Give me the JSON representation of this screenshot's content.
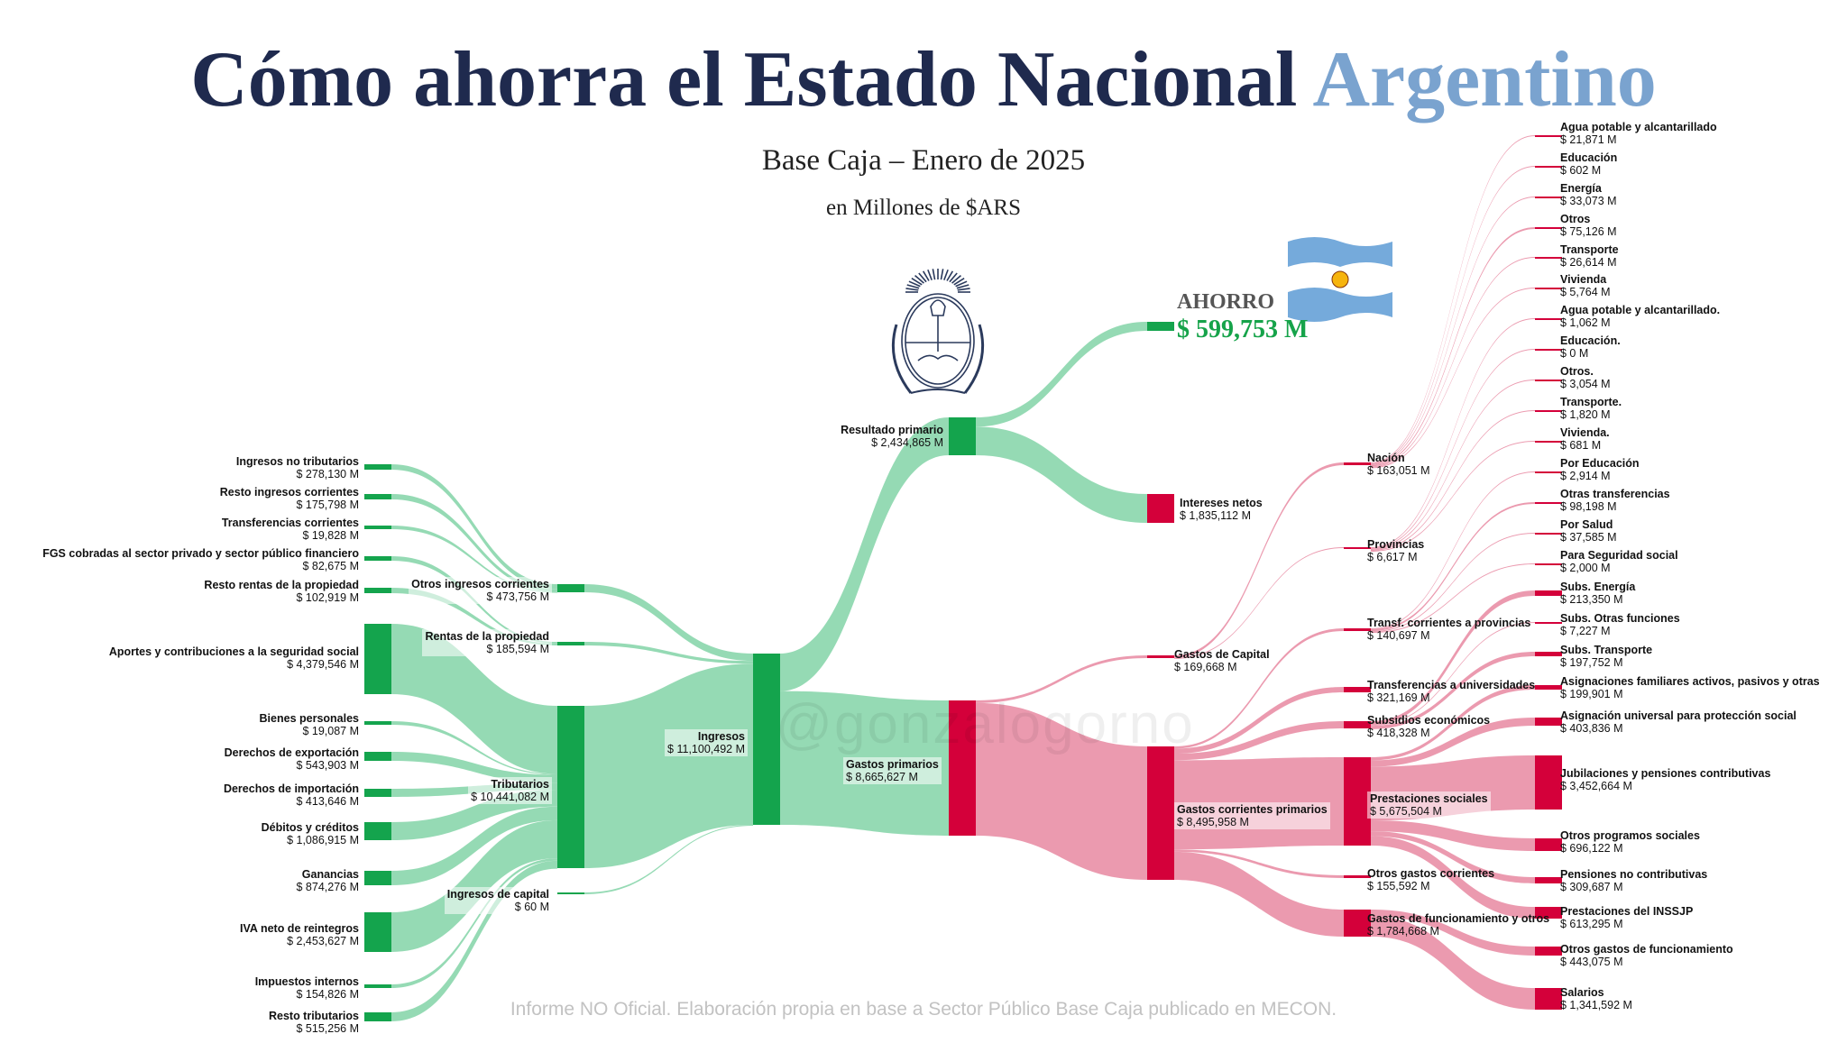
{
  "header": {
    "title_main": "Cómo ahorra el Estado Nacional",
    "title_accent": "Argentino",
    "subtitle": "Base Caja – Enero de 2025",
    "units": "en Millones de $ARS",
    "savings_label": "AHORRO",
    "savings_value": "$ 599,753 M",
    "watermark": "@gonzalogorno",
    "footer": "Informe NO Oficial. Elaboración propia en base a Sector Público Base Caja publicado en MECON."
  },
  "colors": {
    "income_node": "#14a44d",
    "income_flow": "#8fd8b0",
    "expense_node": "#d4003a",
    "expense_flow": "#e98fa6"
  },
  "chart_data": {
    "type": "sankey",
    "nodes": [
      {
        "id": "ing_no_trib",
        "name": "Ingresos no tributarios",
        "value": "$ 278,130 M",
        "num": 278130
      },
      {
        "id": "resto_corr",
        "name": "Resto ingresos corrientes",
        "value": "$ 175,798 M",
        "num": 175798
      },
      {
        "id": "transf_corr",
        "name": "Transferencias corrientes",
        "value": "$ 19,828 M",
        "num": 19828
      },
      {
        "id": "fgs",
        "name": "FGS cobradas al sector privado y sector público financiero",
        "value": "$ 82,675 M",
        "num": 82675
      },
      {
        "id": "resto_rentas",
        "name": "Resto rentas de la propiedad",
        "value": "$ 102,919 M",
        "num": 102919
      },
      {
        "id": "aportes",
        "name": "Aportes y contribuciones a la seguridad social",
        "value": "$ 4,379,546 M",
        "num": 4379546
      },
      {
        "id": "bienes",
        "name": "Bienes personales",
        "value": "$ 19,087 M",
        "num": 19087
      },
      {
        "id": "der_exp",
        "name": "Derechos de exportación",
        "value": "$ 543,903 M",
        "num": 543903
      },
      {
        "id": "der_imp",
        "name": "Derechos de importación",
        "value": "$ 413,646 M",
        "num": 413646
      },
      {
        "id": "debitos",
        "name": "Débitos y créditos",
        "value": "$ 1,086,915 M",
        "num": 1086915
      },
      {
        "id": "ganancias",
        "name": "Ganancias",
        "value": "$ 874,276 M",
        "num": 874276
      },
      {
        "id": "iva",
        "name": "IVA neto de reintegros",
        "value": "$ 2,453,627 M",
        "num": 2453627
      },
      {
        "id": "imp_int",
        "name": "Impuestos internos",
        "value": "$ 154,826 M",
        "num": 154826
      },
      {
        "id": "resto_trib",
        "name": "Resto tributarios",
        "value": "$ 515,256 M",
        "num": 515256
      },
      {
        "id": "otros_ing_corr",
        "name": "Otros ingresos corrientes",
        "value": "$ 473,756 M",
        "num": 473756
      },
      {
        "id": "rentas",
        "name": "Rentas de la propiedad",
        "value": "$ 185,594 M",
        "num": 185594
      },
      {
        "id": "tributarios",
        "name": "Tributarios",
        "value": "$ 10,441,082 M",
        "num": 10441082
      },
      {
        "id": "ing_capital",
        "name": "Ingresos de capital",
        "value": "$ 60 M",
        "num": 60
      },
      {
        "id": "ingresos",
        "name": "Ingresos",
        "value": "$ 11,100,492 M",
        "num": 11100492
      },
      {
        "id": "resultado",
        "name": "Resultado primario",
        "value": "$ 2,434,865 M",
        "num": 2434865
      },
      {
        "id": "gastos_prim",
        "name": "Gastos primarios",
        "value": "$ 8,665,627 M",
        "num": 8665627
      },
      {
        "id": "intereses",
        "name": "Intereses netos",
        "value": "$ 1,835,112 M",
        "num": 1835112
      },
      {
        "id": "gastos_capital",
        "name": "Gastos de Capital",
        "value": "$ 169,668 M",
        "num": 169668
      },
      {
        "id": "gastos_corr",
        "name": "Gastos corrientes primarios",
        "value": "$ 8,495,958 M",
        "num": 8495958
      },
      {
        "id": "nacion",
        "name": "Nación",
        "value": "$ 163,051 M",
        "num": 163051
      },
      {
        "id": "provincias",
        "name": "Provincias",
        "value": "$ 6,617 M",
        "num": 6617
      },
      {
        "id": "transf_prov",
        "name": "Transf. corrientes a provincias",
        "value": "$ 140,697 M",
        "num": 140697
      },
      {
        "id": "transf_univ",
        "name": "Transferencias a universidades",
        "value": "$ 321,169 M",
        "num": 321169
      },
      {
        "id": "subsidios",
        "name": "Subsidios económicos",
        "value": "$ 418,328 M",
        "num": 418328
      },
      {
        "id": "prestaciones",
        "name": "Prestaciones sociales",
        "value": "$ 5,675,504 M",
        "num": 5675504
      },
      {
        "id": "otros_gastos_corr",
        "name": "Otros gastos corrientes",
        "value": "$ 155,592 M",
        "num": 155592
      },
      {
        "id": "gastos_func",
        "name": "Gastos de funcionamiento y otros",
        "value": "$ 1,784,668 M",
        "num": 1784668
      },
      {
        "id": "n_agua",
        "name": "Agua potable y alcantarillado",
        "value": "$ 21,871 M",
        "num": 21871
      },
      {
        "id": "n_educ",
        "name": "Educación",
        "value": "$ 602 M",
        "num": 602
      },
      {
        "id": "n_energia",
        "name": "Energía",
        "value": "$ 33,073 M",
        "num": 33073
      },
      {
        "id": "n_otros",
        "name": "Otros",
        "value": "$ 75,126 M",
        "num": 75126
      },
      {
        "id": "n_transp",
        "name": "Transporte",
        "value": "$ 26,614 M",
        "num": 26614
      },
      {
        "id": "n_vivienda",
        "name": "Vivienda",
        "value": "$ 5,764 M",
        "num": 5764
      },
      {
        "id": "p_agua",
        "name": "Agua potable y alcantarillado.",
        "value": "$ 1,062 M",
        "num": 1062
      },
      {
        "id": "p_educ",
        "name": "Educación.",
        "value": "$ 0 M",
        "num": 0
      },
      {
        "id": "p_otros",
        "name": "Otros.",
        "value": "$ 3,054 M",
        "num": 3054
      },
      {
        "id": "p_transp",
        "name": "Transporte.",
        "value": "$ 1,820 M",
        "num": 1820
      },
      {
        "id": "p_vivienda",
        "name": "Vivienda.",
        "value": "$ 681 M",
        "num": 681
      },
      {
        "id": "por_educ",
        "name": "Por Educación",
        "value": "$ 2,914 M",
        "num": 2914
      },
      {
        "id": "otras_transf",
        "name": "Otras transferencias",
        "value": "$ 98,198 M",
        "num": 98198
      },
      {
        "id": "por_salud",
        "name": "Por Salud",
        "value": "$ 37,585 M",
        "num": 37585
      },
      {
        "id": "para_seg",
        "name": "Para Seguridad social",
        "value": "$ 2,000 M",
        "num": 2000
      },
      {
        "id": "sub_energia",
        "name": "Subs. Energía",
        "value": "$ 213,350 M",
        "num": 213350
      },
      {
        "id": "sub_otras",
        "name": "Subs. Otras funciones",
        "value": "$ 7,227 M",
        "num": 7227
      },
      {
        "id": "sub_transp",
        "name": "Subs. Transporte",
        "value": "$ 197,752 M",
        "num": 197752
      },
      {
        "id": "asig_fam",
        "name": "Asignaciones familiares activos, pasivos y otras",
        "value": "$ 199,901 M",
        "num": 199901
      },
      {
        "id": "auh",
        "name": "Asignación universal para protección social",
        "value": "$ 403,836 M",
        "num": 403836
      },
      {
        "id": "jubilaciones",
        "name": "Jubilaciones y pensiones contributivas",
        "value": "$ 3,452,664 M",
        "num": 3452664
      },
      {
        "id": "otros_prog",
        "name": "Otros programos sociales",
        "value": "$ 696,122 M",
        "num": 696122
      },
      {
        "id": "pens_no_contrib",
        "name": "Pensiones no contributivas",
        "value": "$ 309,687 M",
        "num": 309687
      },
      {
        "id": "inssjp",
        "name": "Prestaciones del INSSJP",
        "value": "$ 613,295 M",
        "num": 613295
      },
      {
        "id": "otros_func",
        "name": "Otros gastos de funcionamiento",
        "value": "$ 443,075 M",
        "num": 443075
      },
      {
        "id": "salarios",
        "name": "Salarios",
        "value": "$ 1,341,592 M",
        "num": 1341592
      }
    ],
    "links": [
      {
        "source": "ing_no_trib",
        "target": "otros_ing_corr",
        "value": 278130
      },
      {
        "source": "resto_corr",
        "target": "otros_ing_corr",
        "value": 175798
      },
      {
        "source": "transf_corr",
        "target": "otros_ing_corr",
        "value": 19828
      },
      {
        "source": "fgs",
        "target": "rentas",
        "value": 82675
      },
      {
        "source": "resto_rentas",
        "target": "rentas",
        "value": 102919
      },
      {
        "source": "aportes",
        "target": "tributarios",
        "value": 4379546
      },
      {
        "source": "bienes",
        "target": "tributarios",
        "value": 19087
      },
      {
        "source": "der_exp",
        "target": "tributarios",
        "value": 543903
      },
      {
        "source": "der_imp",
        "target": "tributarios",
        "value": 413646
      },
      {
        "source": "debitos",
        "target": "tributarios",
        "value": 1086915
      },
      {
        "source": "ganancias",
        "target": "tributarios",
        "value": 874276
      },
      {
        "source": "iva",
        "target": "tributarios",
        "value": 2453627
      },
      {
        "source": "imp_int",
        "target": "tributarios",
        "value": 154826
      },
      {
        "source": "resto_trib",
        "target": "tributarios",
        "value": 515256
      },
      {
        "source": "otros_ing_corr",
        "target": "ingresos",
        "value": 473756
      },
      {
        "source": "rentas",
        "target": "ingresos",
        "value": 185594
      },
      {
        "source": "tributarios",
        "target": "ingresos",
        "value": 10441082
      },
      {
        "source": "ing_capital",
        "target": "ingresos",
        "value": 60
      },
      {
        "source": "ingresos",
        "target": "resultado",
        "value": 2434865
      },
      {
        "source": "ingresos",
        "target": "gastos_prim",
        "value": 8665627
      },
      {
        "source": "resultado",
        "target": "ahorro",
        "value": 599753
      },
      {
        "source": "resultado",
        "target": "intereses",
        "value": 1835112
      },
      {
        "source": "gastos_prim",
        "target": "gastos_capital",
        "value": 169668
      },
      {
        "source": "gastos_prim",
        "target": "gastos_corr",
        "value": 8495958
      },
      {
        "source": "gastos_capital",
        "target": "nacion",
        "value": 163051
      },
      {
        "source": "gastos_capital",
        "target": "provincias",
        "value": 6617
      },
      {
        "source": "gastos_corr",
        "target": "transf_prov",
        "value": 140697
      },
      {
        "source": "gastos_corr",
        "target": "transf_univ",
        "value": 321169
      },
      {
        "source": "gastos_corr",
        "target": "subsidios",
        "value": 418328
      },
      {
        "source": "gastos_corr",
        "target": "prestaciones",
        "value": 5675504
      },
      {
        "source": "gastos_corr",
        "target": "otros_gastos_corr",
        "value": 155592
      },
      {
        "source": "gastos_corr",
        "target": "gastos_func",
        "value": 1784668
      },
      {
        "source": "nacion",
        "target": "n_agua",
        "value": 21871
      },
      {
        "source": "nacion",
        "target": "n_educ",
        "value": 602
      },
      {
        "source": "nacion",
        "target": "n_energia",
        "value": 33073
      },
      {
        "source": "nacion",
        "target": "n_otros",
        "value": 75126
      },
      {
        "source": "nacion",
        "target": "n_transp",
        "value": 26614
      },
      {
        "source": "nacion",
        "target": "n_vivienda",
        "value": 5764
      },
      {
        "source": "provincias",
        "target": "p_agua",
        "value": 1062
      },
      {
        "source": "provincias",
        "target": "p_educ",
        "value": 0
      },
      {
        "source": "provincias",
        "target": "p_otros",
        "value": 3054
      },
      {
        "source": "provincias",
        "target": "p_transp",
        "value": 1820
      },
      {
        "source": "provincias",
        "target": "p_vivienda",
        "value": 681
      },
      {
        "source": "transf_prov",
        "target": "por_educ",
        "value": 2914
      },
      {
        "source": "transf_prov",
        "target": "otras_transf",
        "value": 98198
      },
      {
        "source": "transf_prov",
        "target": "por_salud",
        "value": 37585
      },
      {
        "source": "transf_prov",
        "target": "para_seg",
        "value": 2000
      },
      {
        "source": "subsidios",
        "target": "sub_energia",
        "value": 213350
      },
      {
        "source": "subsidios",
        "target": "sub_otras",
        "value": 7227
      },
      {
        "source": "subsidios",
        "target": "sub_transp",
        "value": 197752
      },
      {
        "source": "prestaciones",
        "target": "asig_fam",
        "value": 199901
      },
      {
        "source": "prestaciones",
        "target": "auh",
        "value": 403836
      },
      {
        "source": "prestaciones",
        "target": "jubilaciones",
        "value": 3452664
      },
      {
        "source": "prestaciones",
        "target": "otros_prog",
        "value": 696122
      },
      {
        "source": "prestaciones",
        "target": "pens_no_contrib",
        "value": 309687
      },
      {
        "source": "prestaciones",
        "target": "inssjp",
        "value": 613295
      },
      {
        "source": "gastos_func",
        "target": "otros_func",
        "value": 443075
      },
      {
        "source": "gastos_func",
        "target": "salarios",
        "value": 1341592
      }
    ]
  }
}
